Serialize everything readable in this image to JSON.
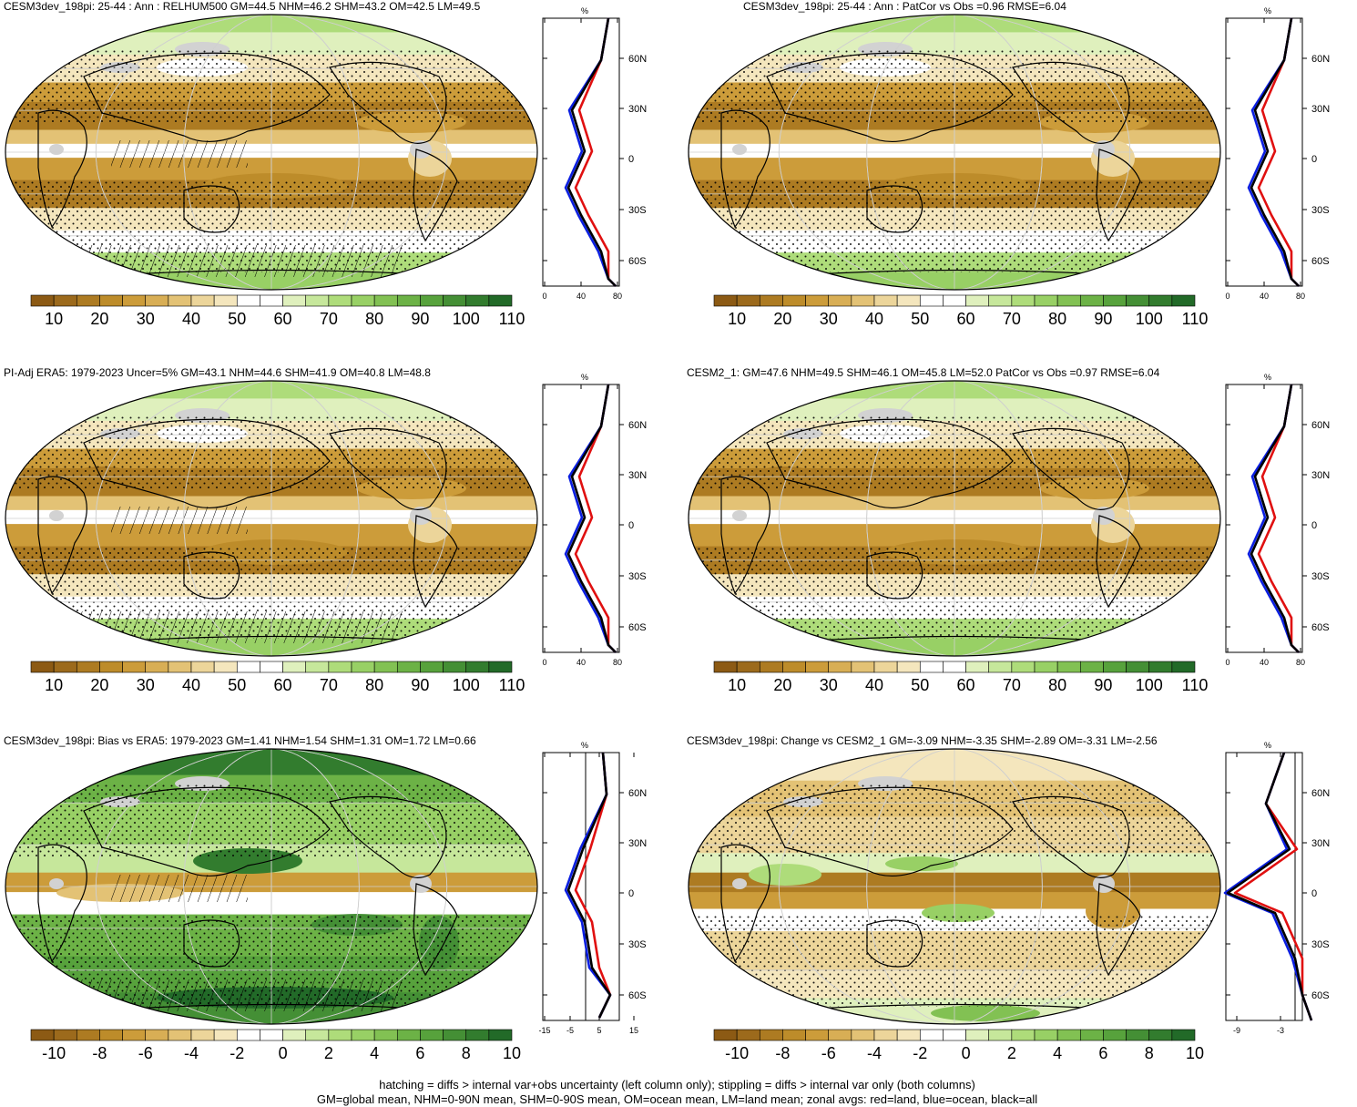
{
  "panels": [
    {
      "id": "p1",
      "title": "CESM3dev_198pi: 25-44 : Ann : RELHUM500 GM=44.5 NHM=46.2 SHM=43.2 OM=42.5 LM=49.5",
      "kind": "abs",
      "hatch": true,
      "zonal_xticks": [
        "0",
        "40",
        "80"
      ],
      "zonal_unit": "%",
      "lat_labels": [
        "60N",
        "30N",
        "0",
        "30S",
        "60S"
      ],
      "colorbar_labels": [
        "10",
        "20",
        "30",
        "40",
        "50",
        "60",
        "70",
        "80",
        "90",
        "100",
        "110"
      ]
    },
    {
      "id": "p2",
      "title": "CESM3dev_198pi: 25-44 : Ann : PatCor vs Obs =0.96 RMSE=6.04",
      "kind": "abs",
      "hatch": false,
      "zonal_xticks": [
        "0",
        "40",
        "80"
      ],
      "zonal_unit": "%",
      "lat_labels": [
        "60N",
        "30N",
        "0",
        "30S",
        "60S"
      ],
      "colorbar_labels": [
        "10",
        "20",
        "30",
        "40",
        "50",
        "60",
        "70",
        "80",
        "90",
        "100",
        "110"
      ]
    },
    {
      "id": "p3",
      "title": "PI-Adj ERA5: 1979-2023 Uncer=5% GM=43.1 NHM=44.6 SHM=41.9 OM=40.8 LM=48.8",
      "kind": "abs",
      "hatch": true,
      "zonal_xticks": [
        "0",
        "40",
        "80"
      ],
      "zonal_unit": "%",
      "lat_labels": [
        "60N",
        "30N",
        "0",
        "30S",
        "60S"
      ],
      "colorbar_labels": [
        "10",
        "20",
        "30",
        "40",
        "50",
        "60",
        "70",
        "80",
        "90",
        "100",
        "110"
      ]
    },
    {
      "id": "p4",
      "title": "CESM2_1: GM=47.6 NHM=49.5 SHM=46.1 OM=45.8 LM=52.0 PatCor vs Obs =0.97 RMSE=6.04",
      "kind": "abs",
      "hatch": false,
      "zonal_xticks": [
        "0",
        "40",
        "80"
      ],
      "zonal_unit": "%",
      "lat_labels": [
        "60N",
        "30N",
        "0",
        "30S",
        "60S"
      ],
      "colorbar_labels": [
        "10",
        "20",
        "30",
        "40",
        "50",
        "60",
        "70",
        "80",
        "90",
        "100",
        "110"
      ]
    },
    {
      "id": "p5",
      "title": "CESM3dev_198pi: Bias vs ERA5: 1979-2023 GM=1.41 NHM=1.54 SHM=1.31 OM=1.72 LM=0.66",
      "kind": "bias",
      "hatch": true,
      "zonal_xticks": [
        "-15",
        "-5",
        "5",
        "15"
      ],
      "zonal_unit": "%",
      "lat_labels": [
        "60N",
        "30N",
        "0",
        "30S",
        "60S"
      ],
      "colorbar_labels": [
        "-10",
        "-8",
        "-6",
        "-4",
        "-2",
        "0",
        "2",
        "4",
        "6",
        "8",
        "10"
      ]
    },
    {
      "id": "p6",
      "title": "CESM3dev_198pi: Change vs CESM2_1 GM=-3.09 NHM=-3.35 SHM=-2.89 OM=-3.31 LM=-2.56",
      "kind": "change",
      "hatch": false,
      "zonal_xticks": [
        "-9",
        "-3"
      ],
      "zonal_unit": "%",
      "lat_labels": [
        "60N",
        "30N",
        "0",
        "30S",
        "60S"
      ],
      "colorbar_labels": [
        "-10",
        "-8",
        "-6",
        "-4",
        "-2",
        "0",
        "2",
        "4",
        "6",
        "8",
        "10"
      ]
    }
  ],
  "colorbar": {
    "colors_abs": [
      "#8c5a14",
      "#9c6a1c",
      "#ad7b22",
      "#bd8c2a",
      "#cc9c3a",
      "#d8ae55",
      "#e3c275",
      "#ecd59a",
      "#f4e6bd",
      "#ffffff",
      "#ffffff",
      "#dff0bd",
      "#c6e79b",
      "#aedc7a",
      "#98d065",
      "#82c153",
      "#6cb246",
      "#57a23c",
      "#448f35",
      "#327c2e",
      "#226a28"
    ],
    "colors_div": [
      "#8c5a14",
      "#9c6a1c",
      "#ad7b22",
      "#bd8c2a",
      "#cc9c3a",
      "#d8ae55",
      "#e3c275",
      "#ecd59a",
      "#f4e6bd",
      "#ffffff",
      "#ffffff",
      "#dff0bd",
      "#c6e79b",
      "#aedc7a",
      "#98d065",
      "#82c153",
      "#6cb246",
      "#57a23c",
      "#448f35",
      "#327c2e",
      "#226a28"
    ],
    "land_missing": "#d2d2d2"
  },
  "zonal_lines": {
    "land": "#e01010",
    "ocean": "#0a1ee0",
    "all": "#000000"
  },
  "footer": {
    "line1": "hatching = diffs > internal var+obs uncertainty (left column only); stippling = diffs > internal var only (both columns)",
    "line2": "GM=global mean, NHM=0-90N mean, SHM=0-90S mean, OM=ocean mean, LM=land mean; zonal avgs: red=land, blue=ocean, black=all"
  }
}
